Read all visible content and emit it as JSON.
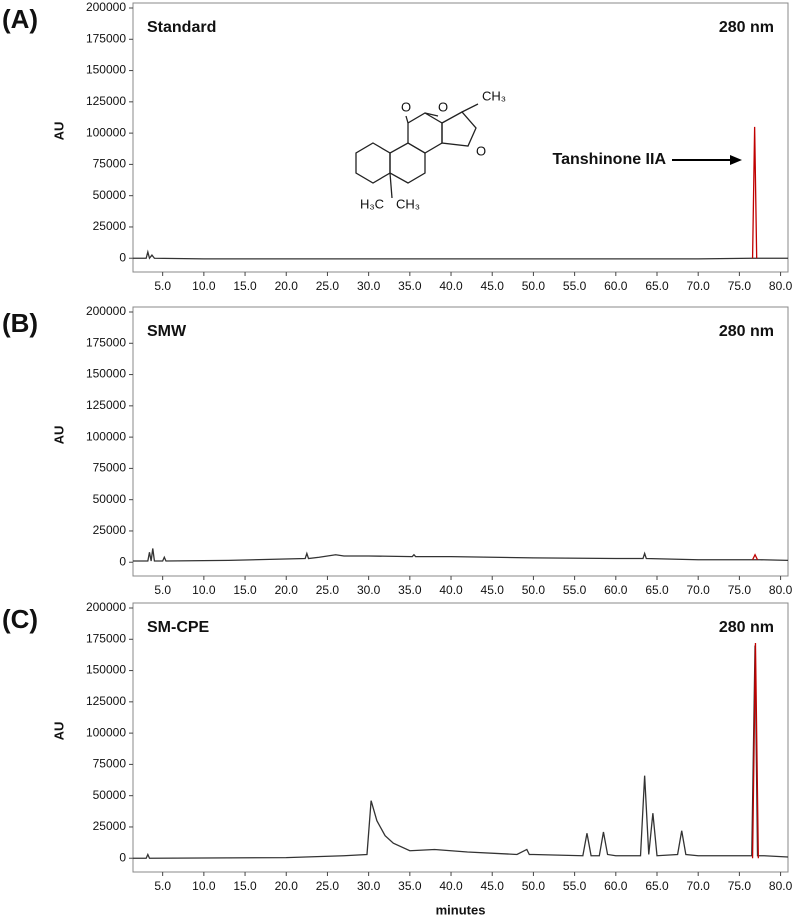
{
  "chart_data": [
    {
      "type": "line",
      "title": "(A)",
      "sample": "Standard",
      "wavelength": "280 nm",
      "y_label": "AU",
      "annotation": "Tanshinone IIA",
      "structure_labels": [
        "O",
        "O",
        "CH₃",
        "O",
        "H₃C",
        "CH₃"
      ],
      "xlim": [
        1.4,
        80.9
      ],
      "ylim": [
        -11000,
        204000
      ],
      "xticks": [
        {
          "value": 5,
          "label": "5.0"
        },
        {
          "value": 10,
          "label": "10.0"
        },
        {
          "value": 15,
          "label": "15.0"
        },
        {
          "value": 20,
          "label": "20.0"
        },
        {
          "value": 25,
          "label": "25.0"
        },
        {
          "value": 30,
          "label": "30.0"
        },
        {
          "value": 35,
          "label": "35.0"
        },
        {
          "value": 40,
          "label": "40.0"
        },
        {
          "value": 45,
          "label": "45.0"
        },
        {
          "value": 50,
          "label": "50.0"
        },
        {
          "value": 55,
          "label": "55.0"
        },
        {
          "value": 60,
          "label": "60.0"
        },
        {
          "value": 65,
          "label": "65.0"
        },
        {
          "value": 70,
          "label": "70.0"
        },
        {
          "value": 75,
          "label": "75.0"
        },
        {
          "value": 80,
          "label": "80.0"
        }
      ],
      "yticks": [
        0,
        25000,
        50000,
        75000,
        100000,
        125000,
        150000,
        175000,
        200000
      ],
      "series": [
        {
          "color": "#333333",
          "x": [
            1.4,
            3.0,
            3.2,
            3.4,
            3.7,
            4.0,
            10,
            30,
            50,
            70,
            76.5,
            77.5,
            80.9
          ],
          "values": [
            0,
            0,
            5000,
            0,
            2500,
            0,
            -500,
            -500,
            -500,
            -500,
            0,
            0,
            0
          ]
        },
        {
          "color": "#c00000",
          "x": [
            76.6,
            76.85,
            77.1
          ],
          "values": [
            0,
            105000,
            0
          ]
        }
      ]
    },
    {
      "type": "line",
      "title": "(B)",
      "sample": "SMW",
      "wavelength": "280 nm",
      "y_label": "AU",
      "xlim": [
        1.4,
        80.9
      ],
      "ylim": [
        -11000,
        204000
      ],
      "xticks": [
        {
          "value": 5,
          "label": "5.0"
        },
        {
          "value": 10,
          "label": "10.0"
        },
        {
          "value": 15,
          "label": "15.0"
        },
        {
          "value": 20,
          "label": "20.0"
        },
        {
          "value": 25,
          "label": "25.0"
        },
        {
          "value": 30,
          "label": "30.0"
        },
        {
          "value": 35,
          "label": "35.0"
        },
        {
          "value": 40,
          "label": "40.0"
        },
        {
          "value": 45,
          "label": "45.0"
        },
        {
          "value": 50,
          "label": "50.0"
        },
        {
          "value": 55,
          "label": "55.0"
        },
        {
          "value": 60,
          "label": "60.0"
        },
        {
          "value": 65,
          "label": "65.0"
        },
        {
          "value": 70,
          "label": "70.0"
        },
        {
          "value": 75,
          "label": "75.0"
        },
        {
          "value": 80,
          "label": "80.0"
        }
      ],
      "yticks": [
        0,
        25000,
        50000,
        75000,
        100000,
        125000,
        150000,
        175000,
        200000
      ],
      "series": [
        {
          "color": "#333333",
          "x": [
            1.4,
            3.2,
            3.4,
            3.6,
            3.8,
            4.0,
            5.0,
            5.2,
            5.4,
            13,
            22.3,
            22.5,
            22.7,
            24,
            26,
            27,
            30,
            35.3,
            35.5,
            35.7,
            40,
            50,
            60,
            63.3,
            63.5,
            63.7,
            70,
            76.5,
            77.5,
            80.9
          ],
          "values": [
            1000,
            1000,
            8000,
            1000,
            11000,
            1000,
            1000,
            4000,
            1000,
            1500,
            3000,
            7000,
            3000,
            4000,
            6000,
            5000,
            5000,
            4500,
            6000,
            4500,
            4500,
            3500,
            3000,
            3000,
            7000,
            3000,
            2000,
            2000,
            2000,
            1500
          ]
        },
        {
          "color": "#c00000",
          "x": [
            76.6,
            76.9,
            77.2
          ],
          "values": [
            2000,
            6000,
            2000
          ]
        }
      ]
    },
    {
      "type": "line",
      "title": "(C)",
      "sample": "SM-CPE",
      "wavelength": "280 nm",
      "y_label": "AU",
      "x_label": "minutes",
      "xlim": [
        1.4,
        80.9
      ],
      "ylim": [
        -11000,
        204000
      ],
      "xticks": [
        {
          "value": 5,
          "label": "5.0"
        },
        {
          "value": 10,
          "label": "10.0"
        },
        {
          "value": 15,
          "label": "15.0"
        },
        {
          "value": 20,
          "label": "20.0"
        },
        {
          "value": 25,
          "label": "25.0"
        },
        {
          "value": 30,
          "label": "30.0"
        },
        {
          "value": 35,
          "label": "35.0"
        },
        {
          "value": 40,
          "label": "40.0"
        },
        {
          "value": 45,
          "label": "45.0"
        },
        {
          "value": 50,
          "label": "50.0"
        },
        {
          "value": 55,
          "label": "55.0"
        },
        {
          "value": 60,
          "label": "60.0"
        },
        {
          "value": 65,
          "label": "65.0"
        },
        {
          "value": 70,
          "label": "70.0"
        },
        {
          "value": 75,
          "label": "75.0"
        },
        {
          "value": 80,
          "label": "80.0"
        }
      ],
      "yticks": [
        0,
        25000,
        50000,
        75000,
        100000,
        125000,
        150000,
        175000,
        200000
      ],
      "series": [
        {
          "color": "#333333",
          "x": [
            1.4,
            3.0,
            3.2,
            3.4,
            20,
            27,
            29.8,
            30.3,
            31,
            32,
            33,
            35,
            38,
            42,
            48,
            49.2,
            49.5,
            50,
            56,
            56.5,
            57,
            58,
            58.5,
            59,
            60,
            63,
            63.5,
            64,
            64.5,
            65,
            67.5,
            68,
            68.5,
            70,
            76.5,
            76.9,
            77.2,
            78,
            80.9
          ],
          "values": [
            0,
            0,
            3000,
            0,
            500,
            2000,
            3000,
            46000,
            30000,
            18000,
            12000,
            6000,
            7000,
            5000,
            3000,
            7000,
            3000,
            3000,
            2000,
            20000,
            2000,
            2000,
            21000,
            3000,
            2000,
            2000,
            66000,
            3000,
            36000,
            2000,
            3000,
            22000,
            3000,
            2000,
            2000,
            170000,
            2000,
            2000,
            1000
          ]
        },
        {
          "color": "#c00000",
          "x": [
            76.6,
            76.95,
            77.3
          ],
          "values": [
            0,
            172000,
            0
          ]
        }
      ]
    }
  ]
}
